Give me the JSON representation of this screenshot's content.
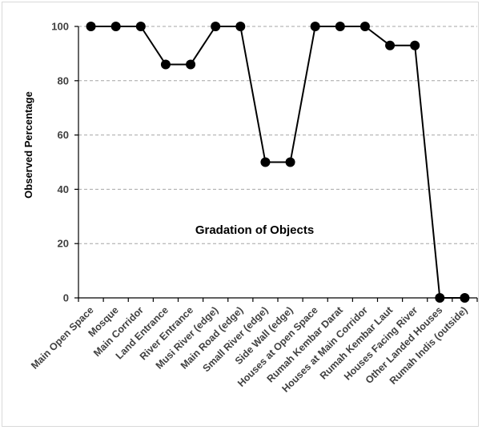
{
  "chart_data": {
    "type": "line",
    "categories": [
      "Main Open Space",
      "Mosque",
      "Main Corridor",
      "Land Entrance",
      "River Entrance",
      "Musi River (edge)",
      "Main Road (edge)",
      "Small River (edge)",
      "Side Wall (edge)",
      "Houses at Open Space",
      "Rumah Kembar Darat",
      "Houses at Main Corridor",
      "Rumah Kembar Laut",
      "Houses Facing River",
      "Other Landed Houses",
      "Rumah Indis (outside)"
    ],
    "values": [
      100,
      100,
      100,
      86,
      86,
      100,
      100,
      50,
      50,
      100,
      100,
      100,
      93,
      93,
      0,
      0
    ],
    "ylabel": "Observed Percentage",
    "annotation": "Gradation of Objects",
    "ylim": [
      0,
      100
    ],
    "yticks": [
      0,
      20,
      40,
      60,
      80,
      100
    ],
    "grid": true,
    "gridline_style": "dashed",
    "line_color": "#000000",
    "marker": "circle"
  }
}
